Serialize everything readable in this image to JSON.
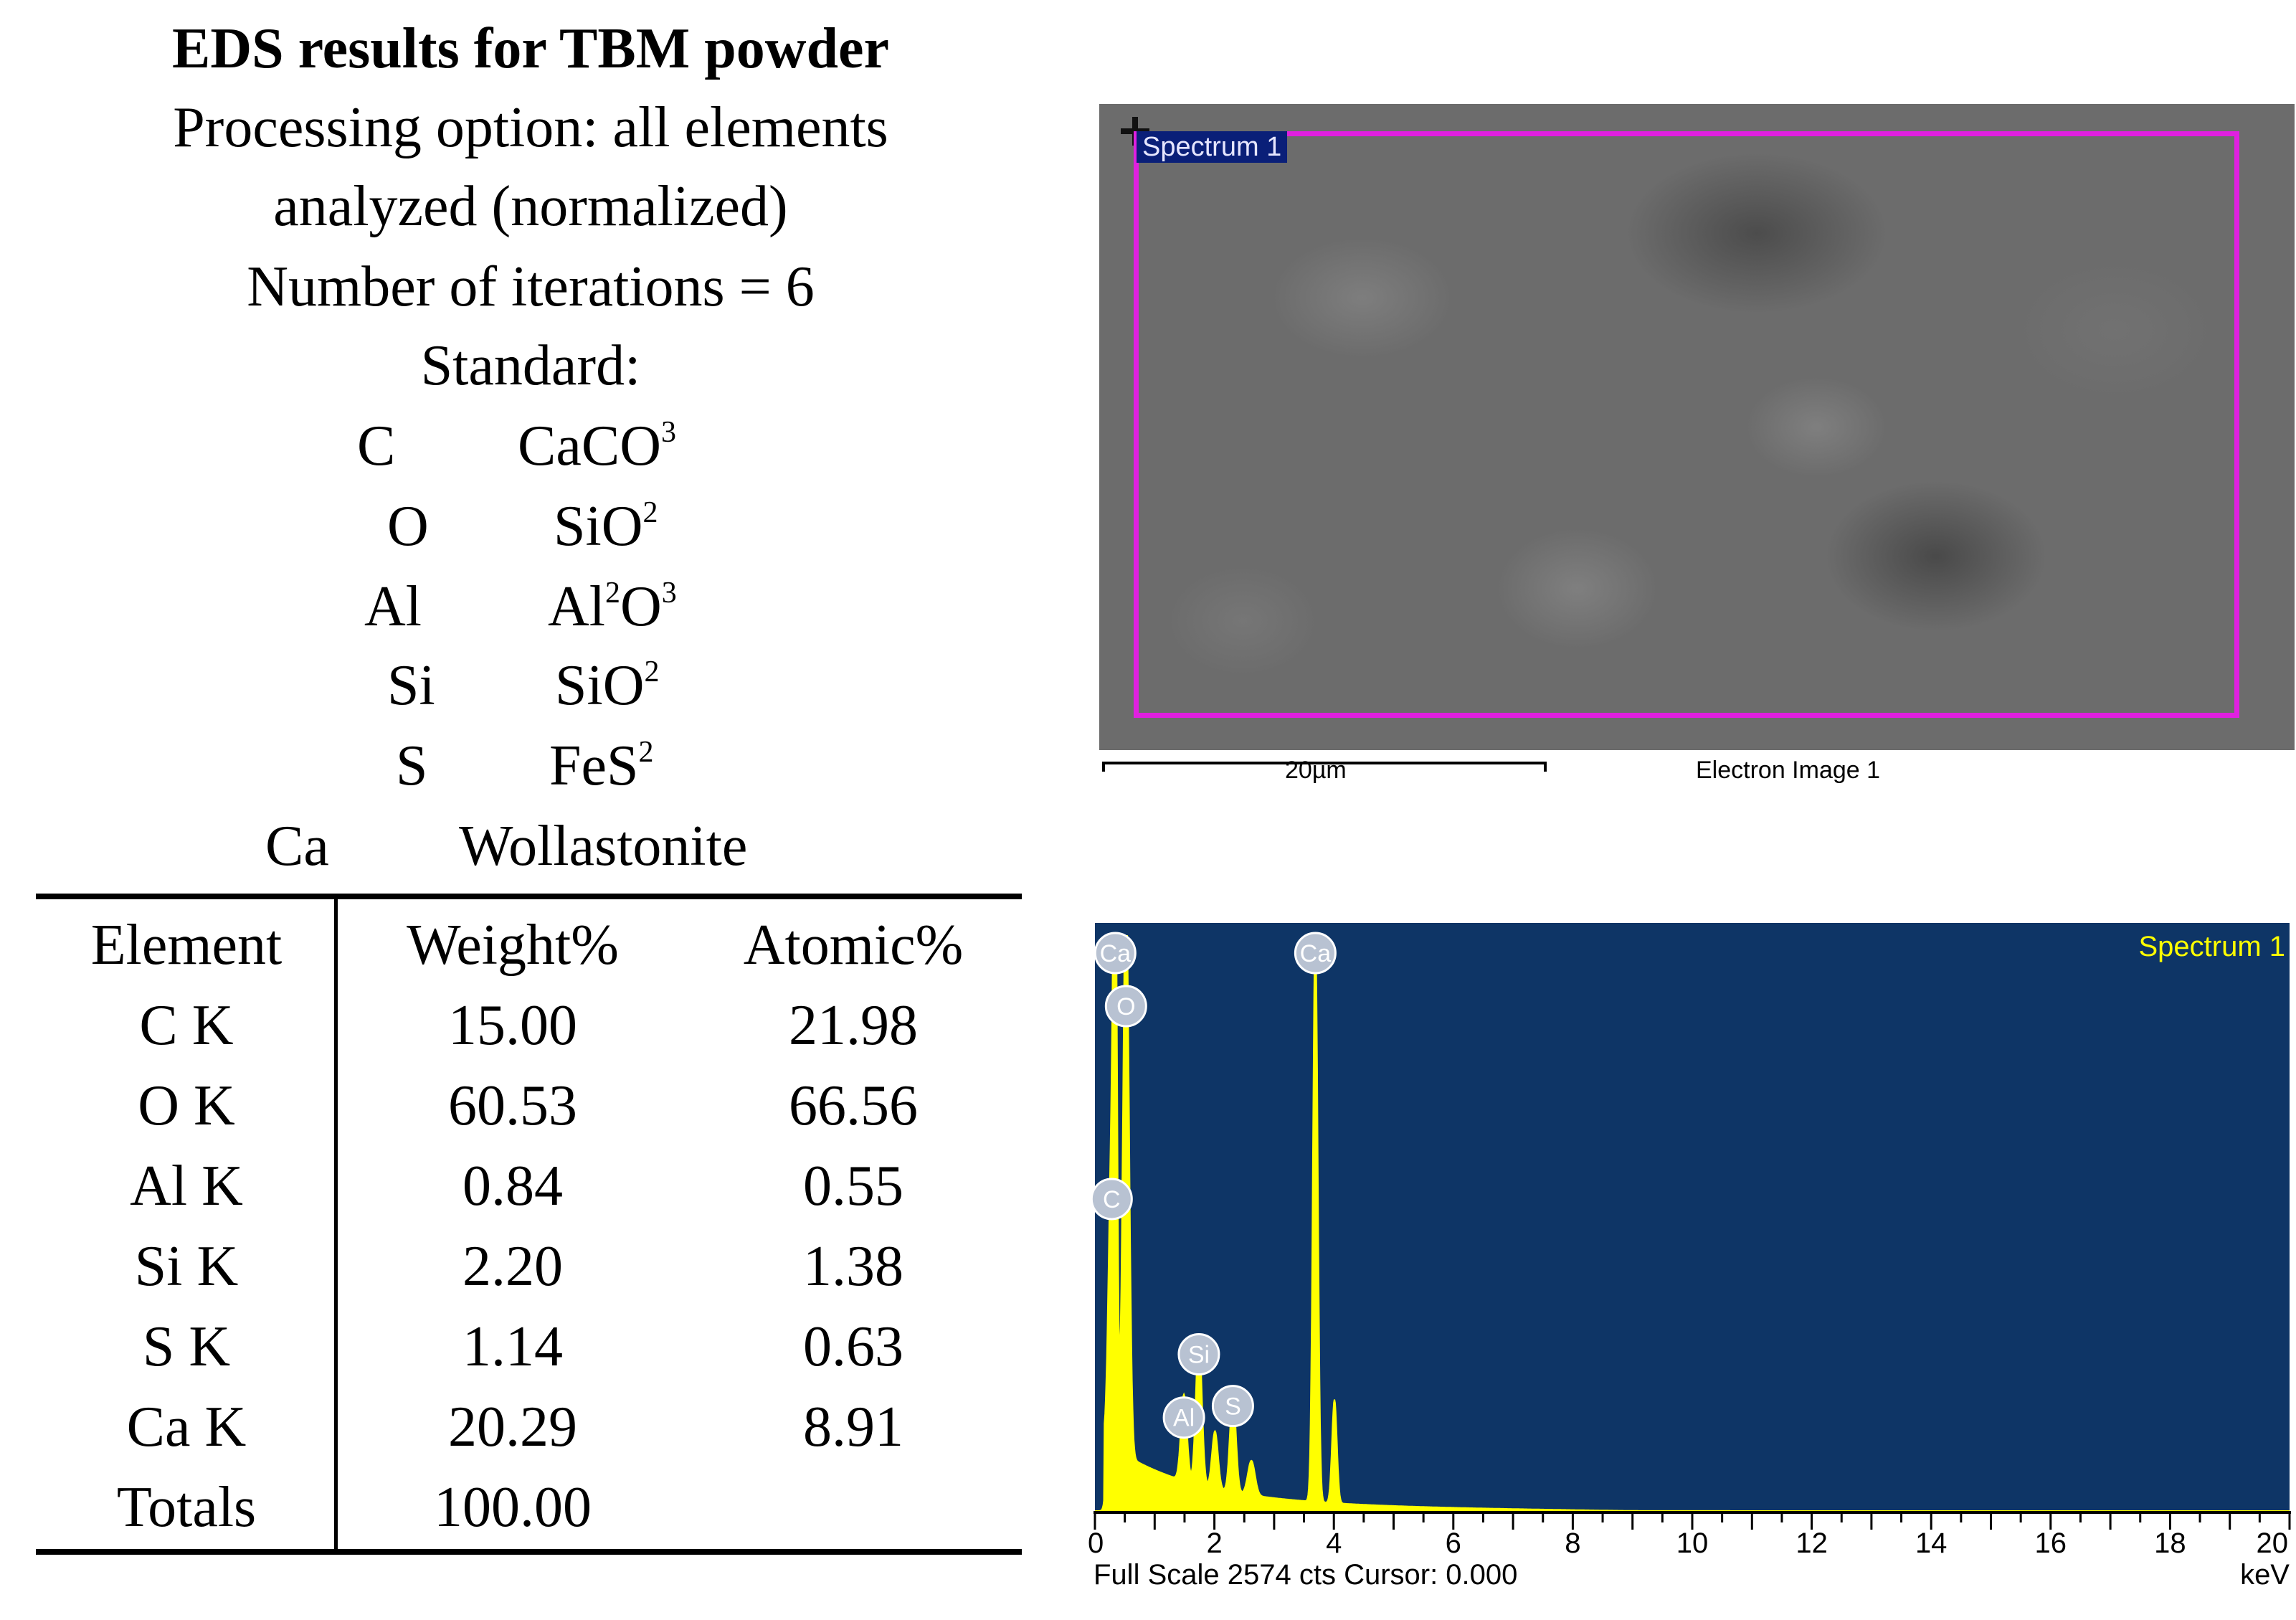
{
  "header": {
    "title": "EDS results for TBM powder",
    "lines": [
      "Processing option: all elements",
      "analyzed (normalized)",
      "Number of iterations = 6",
      "Standard:"
    ]
  },
  "standards": [
    {
      "element": "C",
      "standard": "CaCO",
      "sub1": "3"
    },
    {
      "element": "O",
      "standard": "SiO",
      "sub1": "2"
    },
    {
      "element": "Al",
      "standard": "Al",
      "sub1": "2",
      "standard2": "O",
      "sub2": "3"
    },
    {
      "element": "Si",
      "standard": "SiO",
      "sub1": "2"
    },
    {
      "element": "S",
      "standard": "FeS",
      "sub1": "2"
    },
    {
      "element": "Ca",
      "standard": "Wollastonite"
    }
  ],
  "table": {
    "headers": [
      "Element",
      "Weight%",
      "Atomic%"
    ],
    "rows": [
      [
        "C K",
        "15.00",
        "21.98"
      ],
      [
        "O K",
        "60.53",
        "66.56"
      ],
      [
        "Al K",
        "0.84",
        "0.55"
      ],
      [
        "Si K",
        "2.20",
        "1.38"
      ],
      [
        "S K",
        "1.14",
        "0.63"
      ],
      [
        "Ca K",
        "20.29",
        "8.91"
      ],
      [
        "Totals",
        "100.00",
        ""
      ]
    ]
  },
  "sem_image": {
    "tag": "Spectrum 1",
    "scale_label": "20µm",
    "caption": "Electron Image 1",
    "box_color": "#e020e0"
  },
  "spectrum": {
    "label": "Spectrum 1",
    "x_unit": "keV",
    "xlim": [
      0,
      20
    ],
    "x_ticks": [
      "0",
      "2",
      "4",
      "6",
      "8",
      "10",
      "12",
      "14",
      "16",
      "18",
      "20"
    ],
    "footer": "Full Scale 2574 cts Cursor: 0.000",
    "background": "#0e3566",
    "trace_color": "#ffff00",
    "peaks": [
      {
        "label": "C",
        "kev": 0.28,
        "rel": 0.53
      },
      {
        "label": "O",
        "kev": 0.52,
        "rel": 1.0
      },
      {
        "label": "Ca",
        "kev": 0.34,
        "rel": 1.0
      },
      {
        "label": "Al",
        "kev": 1.49,
        "rel": 0.15
      },
      {
        "label": "Si",
        "kev": 1.74,
        "rel": 0.26
      },
      {
        "label": "S",
        "kev": 2.31,
        "rel": 0.17
      },
      {
        "label": "Ca",
        "kev": 3.69,
        "rel": 1.0
      }
    ]
  }
}
